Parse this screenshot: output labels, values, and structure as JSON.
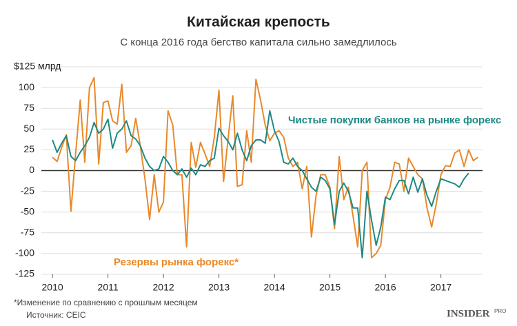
{
  "chart_data": {
    "type": "line",
    "title": "Китайская крепость",
    "subtitle": "С конца 2016 года бегство капитала сильно замедлилось",
    "footnote": "*Изменение по сравнению с прошлым месяцем",
    "source": "Источник: CEIC",
    "logo": {
      "main": "INSIDER",
      "sub": "PRO"
    },
    "x": [
      2010,
      2010.083,
      2010.167,
      2010.25,
      2010.333,
      2010.417,
      2010.5,
      2010.583,
      2010.667,
      2010.75,
      2010.833,
      2010.917,
      2011,
      2011.083,
      2011.167,
      2011.25,
      2011.333,
      2011.417,
      2011.5,
      2011.583,
      2011.667,
      2011.75,
      2011.833,
      2011.917,
      2012,
      2012.083,
      2012.167,
      2012.25,
      2012.333,
      2012.417,
      2012.5,
      2012.583,
      2012.667,
      2012.75,
      2012.833,
      2012.917,
      2013,
      2013.083,
      2013.167,
      2013.25,
      2013.333,
      2013.417,
      2013.5,
      2013.583,
      2013.667,
      2013.75,
      2013.833,
      2013.917,
      2014,
      2014.083,
      2014.167,
      2014.25,
      2014.333,
      2014.417,
      2014.5,
      2014.583,
      2014.667,
      2014.75,
      2014.833,
      2014.917,
      2015,
      2015.083,
      2015.167,
      2015.25,
      2015.333,
      2015.417,
      2015.5,
      2015.583,
      2015.667,
      2015.75,
      2015.833,
      2015.917,
      2016,
      2016.083,
      2016.167,
      2016.25,
      2016.333,
      2016.417,
      2016.5,
      2016.583,
      2016.667,
      2016.75,
      2016.833,
      2016.917,
      2017,
      2017.083,
      2017.167,
      2017.25,
      2017.333,
      2017.417,
      2017.5,
      2017.583,
      2017.667
    ],
    "series": [
      {
        "name": "Резервы рынка форекс*",
        "color": "#e8892b",
        "values": [
          16,
          11,
          28,
          43,
          -49,
          20,
          85,
          10,
          100,
          112,
          8,
          82,
          84,
          60,
          56,
          104,
          22,
          30,
          63,
          30,
          -10,
          -59,
          -5,
          -50,
          -38,
          72,
          55,
          -5,
          -5,
          -92,
          34,
          4,
          34,
          20,
          5,
          40,
          97,
          -13,
          40,
          90,
          -19,
          -17,
          48,
          10,
          110,
          85,
          55,
          36,
          45,
          48,
          40,
          15,
          5,
          10,
          -22,
          5,
          -80,
          -30,
          -5,
          -5,
          -20,
          -70,
          17,
          -35,
          -20,
          -55,
          -92,
          0,
          10,
          -105,
          -100,
          -90,
          -35,
          -20,
          10,
          8,
          -25,
          15,
          5,
          -5,
          -10,
          -45,
          -68,
          -40,
          -5,
          6,
          5,
          21,
          25,
          5,
          25,
          12,
          16
        ]
      },
      {
        "name": "Чистые покупки банков на рынке форекс",
        "color": "#1e8a84",
        "values": [
          37,
          22,
          33,
          42,
          17,
          12,
          22,
          30,
          40,
          58,
          45,
          50,
          62,
          27,
          45,
          50,
          60,
          42,
          38,
          30,
          15,
          5,
          0,
          2,
          17,
          10,
          0,
          -5,
          2,
          -8,
          3,
          -5,
          7,
          5,
          12,
          15,
          51,
          42,
          35,
          25,
          45,
          25,
          12,
          30,
          37,
          37,
          33,
          72,
          48,
          35,
          10,
          8,
          15,
          5,
          0,
          -10,
          -20,
          -25,
          -8,
          -12,
          -22,
          -65,
          -25,
          -15,
          -25,
          -45,
          -45,
          -105,
          -25,
          -60,
          -90,
          -68,
          -32,
          -35,
          -22,
          -12,
          -12,
          -28,
          -8,
          -26,
          -10,
          -30,
          -43,
          -25,
          -10,
          -12,
          -14,
          -16,
          -20,
          -10,
          -3,
          null,
          null
        ]
      }
    ],
    "xlim": [
      2009.8,
      2017.75
    ],
    "xticks": [
      2010,
      2011,
      2012,
      2013,
      2014,
      2015,
      2016,
      2017
    ],
    "ylim": [
      -125,
      125
    ],
    "yticks": [
      -125,
      -100,
      -75,
      -50,
      -25,
      0,
      25,
      50,
      75,
      100,
      {
        "value": 125,
        "label": "$125 млрд"
      }
    ],
    "grid": true
  }
}
